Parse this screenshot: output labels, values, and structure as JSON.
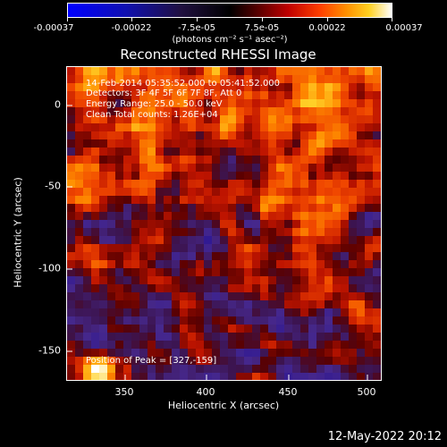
{
  "colorbar": {
    "ticks": [
      "-0.00037",
      "-0.00022",
      "-7.5e-05",
      "7.5e-05",
      "0.00022",
      "0.00037"
    ],
    "unit": "(photons cm⁻² s⁻¹ asec⁻²)"
  },
  "plot": {
    "title": "Reconstructed RHESSI Image",
    "annotations": {
      "line1": "14-Feb-2014 05:35:52.000 to 05:41:52.000",
      "line2": "Detectors: 3F 4F 5F 6F 7F 8F, Att 0",
      "line3": "Energy Range: 25.0 - 50.0 keV",
      "line4": "Clean   Total counts: 1.26E+04",
      "peak": "Position of Peak = [327,-159]"
    },
    "xlabel": "Heliocentric X (arcsec)",
    "ylabel": "Heliocentric Y (arcsec)",
    "xticks": [
      "350",
      "400",
      "450",
      "500"
    ],
    "yticks": [
      "0",
      "-50",
      "-100",
      "-150"
    ],
    "x_range": [
      314,
      506
    ],
    "y_range": [
      -166,
      20
    ]
  },
  "footer": {
    "date": "12-May-2022 20:12"
  },
  "colors": {
    "background": "#000000",
    "text": "#ffffff"
  }
}
